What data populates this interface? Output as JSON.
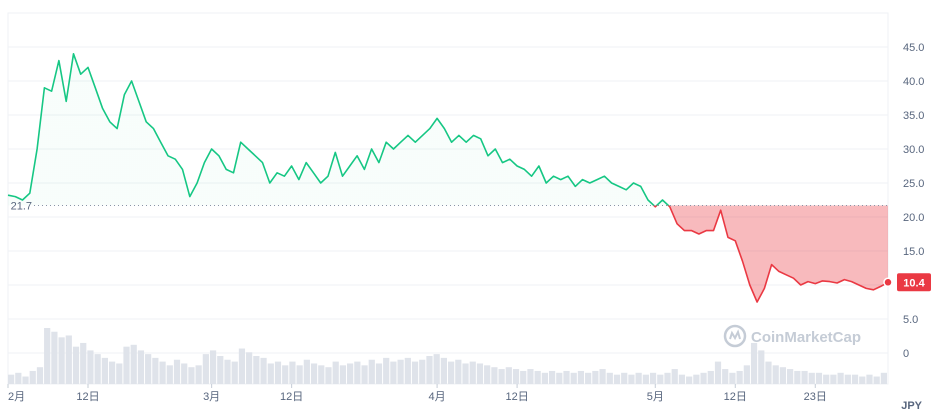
{
  "chart_data": {
    "type": "area",
    "currency": "JPY",
    "baseline": {
      "value": 21.7,
      "label": "21.7"
    },
    "current": {
      "value": 10.4,
      "label": "10.4"
    },
    "watermark": "CoinMarketCap",
    "ylim": [
      0,
      50
    ],
    "y_ticks": [
      {
        "value": 45,
        "label": "45.0"
      },
      {
        "value": 40,
        "label": "40.0"
      },
      {
        "value": 35,
        "label": "35.0"
      },
      {
        "value": 30,
        "label": "30.0"
      },
      {
        "value": 25,
        "label": "25.0"
      },
      {
        "value": 20,
        "label": "20.0"
      },
      {
        "value": 15,
        "label": "15.0"
      },
      {
        "value": 10,
        "label": "10.0"
      },
      {
        "value": 5,
        "label": "5.0"
      },
      {
        "value": 0,
        "label": "0"
      }
    ],
    "x_ticks": [
      {
        "day": 0,
        "label": "2月"
      },
      {
        "day": 11,
        "label": "12日"
      },
      {
        "day": 28,
        "label": "3月"
      },
      {
        "day": 39,
        "label": "12日"
      },
      {
        "day": 59,
        "label": "4月"
      },
      {
        "day": 70,
        "label": "12日"
      },
      {
        "day": 89,
        "label": "5月"
      },
      {
        "day": 100,
        "label": "12日"
      },
      {
        "day": 111,
        "label": "23日"
      }
    ],
    "series": [
      {
        "x": [
          0,
          1,
          2,
          3,
          4,
          5,
          6,
          7,
          8,
          9,
          10,
          11,
          12,
          13,
          14,
          15,
          16,
          17,
          18,
          19,
          20,
          21,
          22,
          23,
          24,
          25,
          26,
          27,
          28,
          29,
          30,
          31,
          32,
          33,
          34,
          35,
          36,
          37,
          38,
          39,
          40,
          41,
          42,
          43,
          44,
          45,
          46,
          47,
          48,
          49,
          50,
          51,
          52,
          53,
          54,
          55,
          56,
          57,
          58,
          59,
          60,
          61,
          62,
          63,
          64,
          65,
          66,
          67,
          68,
          69,
          70,
          71,
          72,
          73,
          74,
          75,
          76,
          77,
          78,
          79,
          80,
          81,
          82,
          83,
          84,
          85,
          86,
          87,
          88,
          89,
          90,
          91,
          92,
          93,
          94,
          95,
          96,
          97,
          98,
          99,
          100,
          101,
          102,
          103,
          104,
          105,
          106,
          107,
          108,
          109,
          110,
          111,
          112,
          113,
          114,
          115,
          116,
          117,
          118,
          119,
          120,
          121
        ],
        "y": [
          23.2,
          23.0,
          22.5,
          23.5,
          30.0,
          39.0,
          38.5,
          43.0,
          37.0,
          44.0,
          41.0,
          42.0,
          39.0,
          36.0,
          34.0,
          33.0,
          38.0,
          40.0,
          37.0,
          34.0,
          33.0,
          31.0,
          29.0,
          28.5,
          27.0,
          23.0,
          25.0,
          28.0,
          30.0,
          29.0,
          27.0,
          26.5,
          31.0,
          30.0,
          29.0,
          28.0,
          25.0,
          26.5,
          26.0,
          27.5,
          25.5,
          28.0,
          26.5,
          25.0,
          26.0,
          29.5,
          26.0,
          27.5,
          29.0,
          27.0,
          30.0,
          28.0,
          31.0,
          30.0,
          31.0,
          32.0,
          31.0,
          32.0,
          33.0,
          34.5,
          33.0,
          31.0,
          32.0,
          31.0,
          32.0,
          31.5,
          29.0,
          30.0,
          28.0,
          28.5,
          27.5,
          27.0,
          26.0,
          27.5,
          25.0,
          26.0,
          25.5,
          26.0,
          24.5,
          25.5,
          25.0,
          25.5,
          26.0,
          25.0,
          24.5,
          24.0,
          25.0,
          24.5,
          22.5,
          21.5,
          22.5,
          21.5,
          19.0,
          18.0,
          18.0,
          17.5,
          18.0,
          18.0,
          21.0,
          17.0,
          16.5,
          13.5,
          10.0,
          7.5,
          9.5,
          13.0,
          12.0,
          11.5,
          11.0,
          10.0,
          10.5,
          10.2,
          10.6,
          10.5,
          10.3,
          10.8,
          10.5,
          10.0,
          9.5,
          9.3,
          9.8,
          10.4
        ]
      }
    ],
    "volume": [
      5,
      6,
      4,
      7,
      9,
      30,
      28,
      25,
      26,
      20,
      22,
      18,
      16,
      14,
      12,
      11,
      20,
      21,
      18,
      16,
      14,
      12,
      10,
      13,
      11,
      9,
      10,
      16,
      18,
      15,
      13,
      12,
      19,
      17,
      15,
      14,
      11,
      12,
      10,
      12,
      10,
      13,
      11,
      10,
      9,
      12,
      10,
      11,
      12,
      10,
      13,
      11,
      14,
      12,
      13,
      14,
      12,
      13,
      15,
      16,
      14,
      12,
      13,
      11,
      12,
      11,
      10,
      9,
      8,
      9,
      8,
      7,
      8,
      7,
      6,
      7,
      6,
      7,
      6,
      7,
      6,
      7,
      8,
      6,
      5,
      6,
      5,
      6,
      5,
      6,
      5,
      6,
      8,
      5,
      4,
      5,
      6,
      7,
      12,
      8,
      6,
      7,
      10,
      22,
      18,
      12,
      10,
      9,
      8,
      7,
      7,
      6,
      6,
      5,
      5,
      6,
      5,
      5,
      4,
      5,
      4,
      6
    ]
  }
}
